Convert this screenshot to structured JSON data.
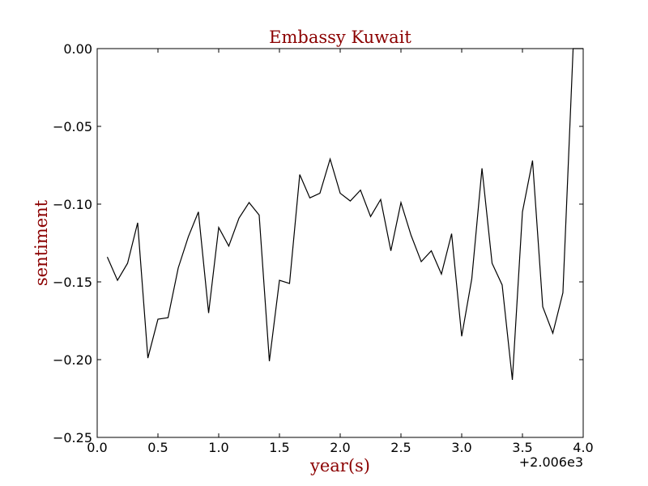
{
  "chart_data": {
    "type": "line",
    "title": "Embassy Kuwait",
    "xlabel": "year(s)",
    "ylabel": "sentiment",
    "x_offset_label": "+2.006e3",
    "xlim": [
      0.0,
      4.0
    ],
    "ylim": [
      -0.25,
      0.0
    ],
    "xticks": [
      0.0,
      0.5,
      1.0,
      1.5,
      2.0,
      2.5,
      3.0,
      3.5,
      4.0
    ],
    "xtick_labels": [
      "0.0",
      "0.5",
      "1.0",
      "1.5",
      "2.0",
      "2.5",
      "3.0",
      "3.5",
      "4.0"
    ],
    "yticks": [
      0.0,
      -0.05,
      -0.1,
      -0.15,
      -0.2,
      -0.25
    ],
    "ytick_labels": [
      "0.00",
      "−0.05",
      "−0.10",
      "−0.15",
      "−0.20",
      "−0.25"
    ],
    "grid": false,
    "colors": {
      "line": "#000000",
      "title": "#8b0000",
      "axis_title": "#8b0000",
      "frame": "#000000"
    },
    "x": [
      0.083,
      0.167,
      0.25,
      0.333,
      0.417,
      0.5,
      0.583,
      0.667,
      0.75,
      0.833,
      0.917,
      1.0,
      1.083,
      1.167,
      1.25,
      1.333,
      1.417,
      1.5,
      1.583,
      1.667,
      1.75,
      1.833,
      1.917,
      2.0,
      2.083,
      2.167,
      2.25,
      2.333,
      2.417,
      2.5,
      2.583,
      2.667,
      2.75,
      2.833,
      2.917,
      3.0,
      3.083,
      3.167,
      3.25,
      3.333,
      3.417,
      3.5,
      3.583,
      3.667,
      3.75,
      3.833,
      3.917,
      4.0
    ],
    "y": [
      -0.134,
      -0.149,
      -0.138,
      -0.112,
      -0.199,
      -0.174,
      -0.173,
      -0.141,
      -0.121,
      -0.105,
      -0.17,
      -0.115,
      -0.127,
      -0.109,
      -0.099,
      -0.107,
      -0.201,
      -0.149,
      -0.151,
      -0.081,
      -0.096,
      -0.093,
      -0.071,
      -0.093,
      -0.098,
      -0.091,
      -0.108,
      -0.097,
      -0.13,
      -0.099,
      -0.12,
      -0.137,
      -0.13,
      -0.145,
      -0.119,
      -0.185,
      -0.148,
      -0.077,
      -0.138,
      -0.152,
      -0.213,
      -0.105,
      -0.072,
      -0.166,
      -0.183,
      -0.157,
      0.0,
      0.0
    ]
  }
}
